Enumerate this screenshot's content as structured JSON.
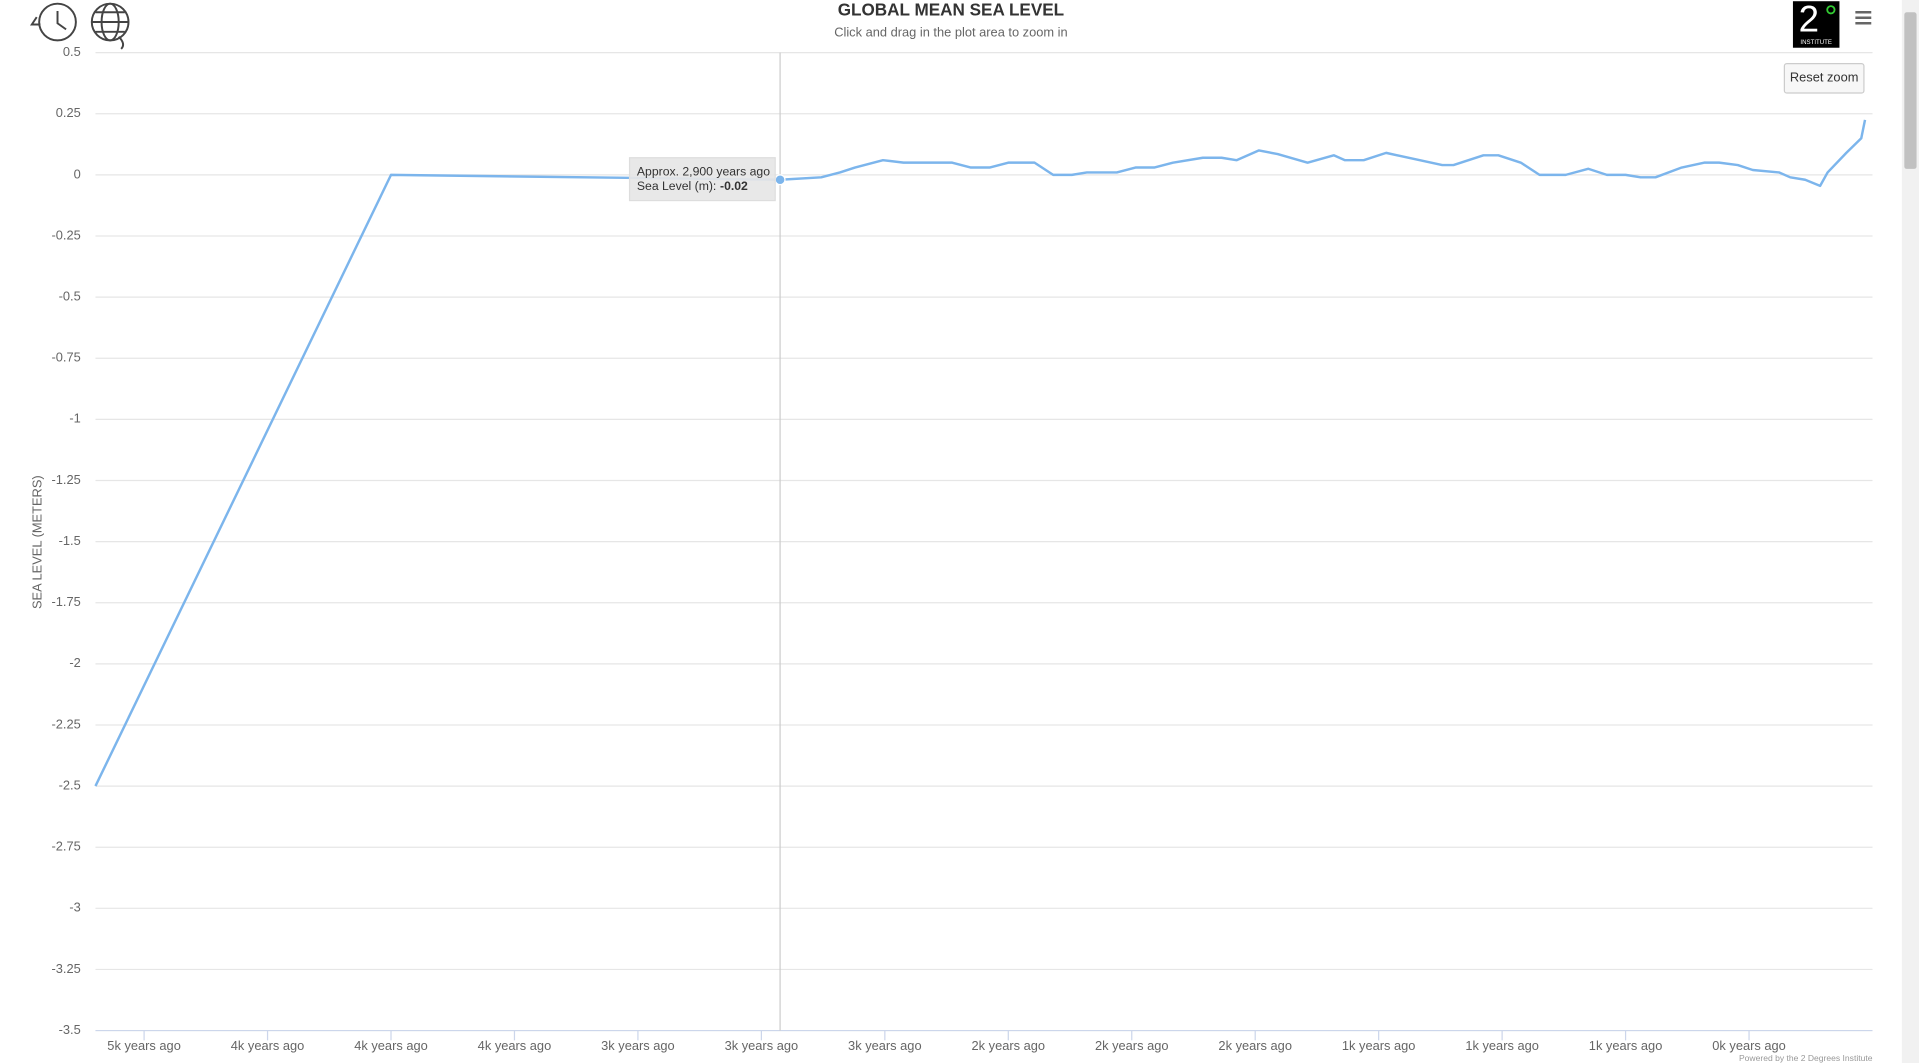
{
  "chart_data": {
    "type": "line",
    "title": "GLOBAL MEAN SEA LEVEL",
    "subtitle": "Click and drag in the plot area to zoom in",
    "y_label": "SEA LEVEL (METERS)",
    "color": "#7cb5ec",
    "grid": true,
    "xlim": [
      4730,
      -20
    ],
    "xticks": [
      {
        "value": 4600,
        "label": "5k years ago"
      },
      {
        "value": 4270,
        "label": "4k years ago"
      },
      {
        "value": 3940,
        "label": "4k years ago"
      },
      {
        "value": 3610,
        "label": "4k years ago"
      },
      {
        "value": 3280,
        "label": "3k years ago"
      },
      {
        "value": 2950,
        "label": "3k years ago"
      },
      {
        "value": 2620,
        "label": "3k years ago"
      },
      {
        "value": 2290,
        "label": "2k years ago"
      },
      {
        "value": 1960,
        "label": "2k years ago"
      },
      {
        "value": 1630,
        "label": "2k years ago"
      },
      {
        "value": 1300,
        "label": "1k years ago"
      },
      {
        "value": 970,
        "label": "1k years ago"
      },
      {
        "value": 640,
        "label": "1k years ago"
      },
      {
        "value": 310,
        "label": "0k years ago"
      }
    ],
    "ylim": [
      -3.5,
      0.5
    ],
    "yticks": [
      0.5,
      0.25,
      0,
      -0.25,
      -0.5,
      -0.75,
      -1,
      -1.25,
      -1.5,
      -1.75,
      -2,
      -2.25,
      -2.5,
      -2.75,
      -3,
      -3.25,
      -3.5
    ],
    "x": [
      4730,
      3940,
      2900,
      2790,
      2740,
      2700,
      2625,
      2570,
      2530,
      2440,
      2390,
      2340,
      2290,
      2220,
      2170,
      2120,
      2080,
      2000,
      1950,
      1900,
      1850,
      1770,
      1720,
      1680,
      1620,
      1570,
      1490,
      1420,
      1390,
      1340,
      1280,
      1190,
      1130,
      1100,
      1020,
      980,
      920,
      870,
      800,
      740,
      690,
      640,
      600,
      560,
      490,
      430,
      390,
      340,
      300,
      230,
      200,
      160,
      120,
      100,
      50,
      10,
      0
    ],
    "values": [
      -2.5,
      0,
      -0.02,
      -0.01,
      0.01,
      0.03,
      0.06,
      0.05,
      0.05,
      0.05,
      0.03,
      0.03,
      0.05,
      0.05,
      0,
      0,
      0.01,
      0.01,
      0.03,
      0.03,
      0.05,
      0.07,
      0.07,
      0.06,
      0.1,
      0.085,
      0.05,
      0.08,
      0.06,
      0.06,
      0.09,
      0.06,
      0.04,
      0.04,
      0.08,
      0.08,
      0.05,
      0,
      0,
      0.025,
      0,
      0,
      -0.01,
      -0.01,
      0.03,
      0.05,
      0.05,
      0.04,
      0.02,
      0.01,
      -0.01,
      -0.02,
      -0.045,
      0.01,
      0.09,
      0.15,
      0.225
    ],
    "tooltip": {
      "title": "Approx. 2,900 years ago",
      "label": "Sea Level (m):"
    },
    "reset_zoom": "Reset zoom",
    "credits": "Powered by the 2 Degrees Institute",
    "logo": {
      "numeral": "2",
      "caption": "INSTITUTE"
    }
  }
}
